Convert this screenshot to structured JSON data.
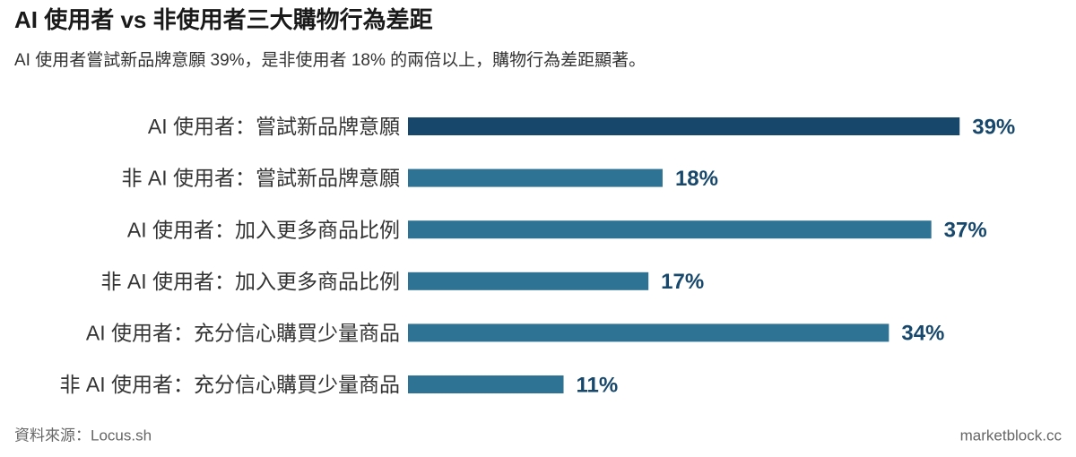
{
  "chart_data": {
    "type": "bar",
    "orientation": "horizontal",
    "title": "AI 使用者 vs 非使用者三大購物行為差距",
    "subtitle": "AI 使用者嘗試新品牌意願 39%，是非使用者 18% 的兩倍以上，購物行為差距顯著。",
    "categories": [
      "AI 使用者：嘗試新品牌意願",
      "非 AI 使用者：嘗試新品牌意願",
      "AI 使用者：加入更多商品比例",
      "非 AI 使用者：加入更多商品比例",
      "AI 使用者：充分信心購買少量商品",
      "非 AI 使用者：充分信心購買少量商品"
    ],
    "values": [
      39,
      18,
      37,
      17,
      34,
      11
    ],
    "value_labels": [
      "39%",
      "18%",
      "37%",
      "17%",
      "34%",
      "11%"
    ],
    "colors": [
      "#17486c",
      "#2e7393",
      "#2e7393",
      "#2e7393",
      "#2e7393",
      "#2e7393"
    ],
    "xlim": [
      0,
      40
    ],
    "source": "資料來源：Locus.sh",
    "credit": "marketblock.cc"
  }
}
